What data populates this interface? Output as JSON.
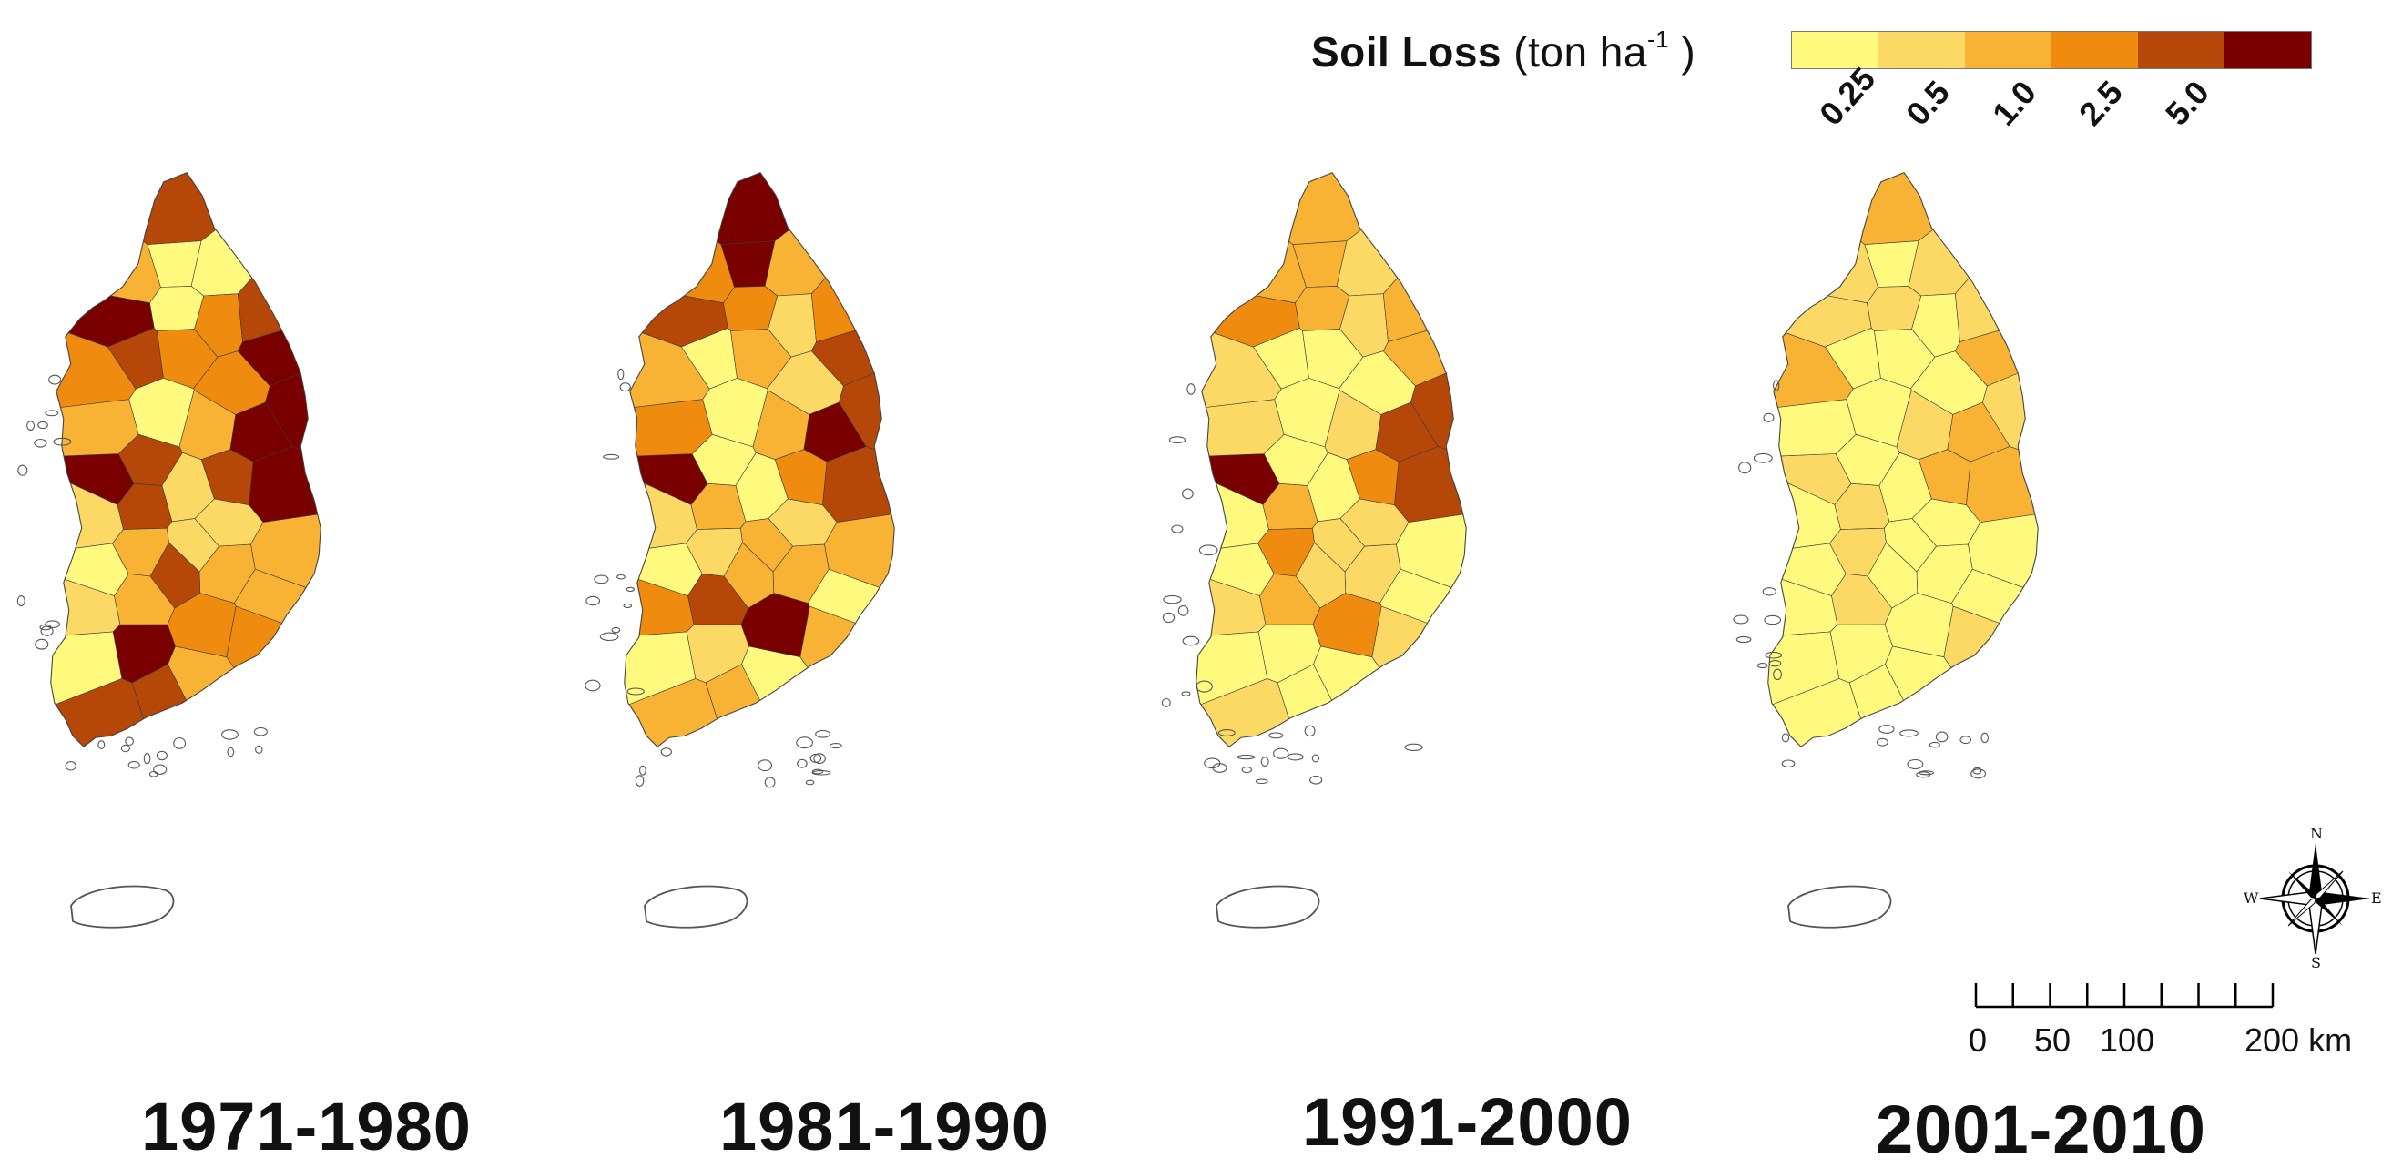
{
  "legend": {
    "title_main": "Soil Loss",
    "title_unit_prefix": "(ton ha",
    "title_unit_exp": "-1",
    "title_unit_suffix": " )",
    "classes": [
      "#fff97e",
      "#fcd964",
      "#f9b334",
      "#ef8c10",
      "#b54808",
      "#7a0000"
    ],
    "break_labels": [
      "0.25",
      "0.5",
      "1.0",
      "2.5",
      "5.0"
    ]
  },
  "palette": {
    "outline": "#555555",
    "region_border": "#3a3a3a"
  },
  "panels": [
    {
      "period": "1971-1980",
      "classes": [
        0,
        5,
        4,
        4,
        2,
        2,
        3,
        2,
        3,
        4,
        5,
        4,
        2,
        3,
        4,
        2,
        3,
        5,
        2,
        1,
        0,
        1,
        3,
        0,
        2,
        5,
        4,
        1,
        5,
        4,
        5,
        2,
        3,
        4,
        1,
        1,
        0,
        0,
        4,
        5,
        0,
        2
      ]
    },
    {
      "period": "1981-1990",
      "classes": [
        2,
        4,
        2,
        2,
        0,
        0,
        2,
        1,
        2,
        0,
        5,
        2,
        3,
        1,
        0,
        4,
        5,
        4,
        2,
        3,
        5,
        0,
        1,
        3,
        2,
        4,
        3,
        2,
        1,
        2,
        5,
        3,
        2,
        3,
        1,
        1,
        0,
        0,
        5,
        4,
        0,
        2
      ]
    },
    {
      "period": "1991-2000",
      "classes": [
        1,
        2,
        0,
        2,
        0,
        0,
        1,
        3,
        0,
        0,
        5,
        1,
        2,
        1,
        0,
        2,
        3,
        4,
        0,
        1,
        2,
        0,
        0,
        2,
        1,
        4,
        2,
        1,
        0,
        1,
        4,
        1,
        1,
        3,
        1,
        0,
        0,
        0,
        2,
        3,
        0,
        1
      ]
    },
    {
      "period": "2001-2010",
      "classes": [
        1,
        2,
        0,
        1,
        0,
        0,
        2,
        1,
        0,
        0,
        1,
        0,
        1,
        0,
        0,
        1,
        0,
        1,
        0,
        0,
        0,
        0,
        0,
        1,
        0,
        2,
        1,
        0,
        0,
        0,
        2,
        0,
        1,
        2,
        0,
        0,
        0,
        0,
        2,
        1,
        0,
        1
      ]
    }
  ],
  "compass": {
    "n": "N",
    "s": "S",
    "e": "E",
    "w": "W"
  },
  "scale_bar": {
    "labels": [
      "0",
      "50",
      "100",
      "200 km"
    ],
    "max_km": 200,
    "tick_step_km": 25
  }
}
